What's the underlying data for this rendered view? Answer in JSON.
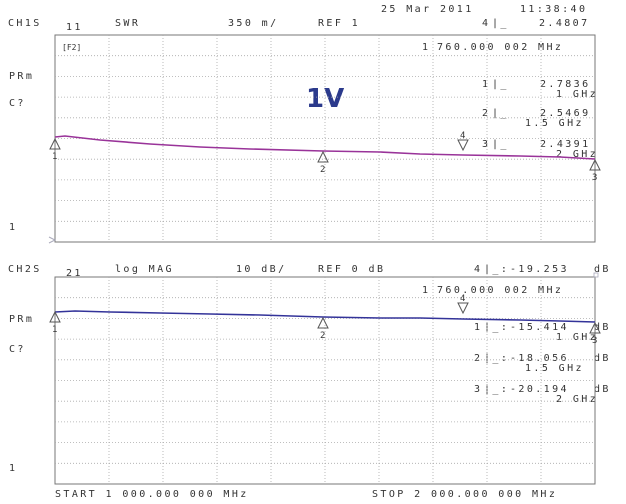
{
  "header": {
    "date": "25 Mar 2011",
    "time": "11:38:40"
  },
  "channel1": {
    "ch_label": "CH1S",
    "param": "11",
    "format": "SWR",
    "scale": "350 m/",
    "ref": "REF 1",
    "top_marker_readout": {
      "num": "4",
      "value": "2.4807"
    },
    "active_marker_freq": {
      "num": "1",
      "freq": "760.000 002 MHz"
    },
    "pr_icon": "[F2]",
    "side_labels": [
      "PRm",
      "C?"
    ],
    "ref_pos_label": "1",
    "overlay_text": "1V",
    "trace_color": "#993399",
    "markers": [
      {
        "num": "1",
        "value": "2.7836",
        "freq": "1 GHz"
      },
      {
        "num": "2",
        "value": "2.5469",
        "freq": "1.5 GHz"
      },
      {
        "num": "3",
        "value": "2.4391",
        "freq": "2 GHz"
      }
    ]
  },
  "channel2": {
    "ch_label": "CH2S",
    "param": "21",
    "format": "log MAG",
    "scale": "10 dB/",
    "ref": "REF 0 dB",
    "top_marker_readout": {
      "num": "4",
      "value": "-19.253",
      "unit": "dB"
    },
    "active_marker_freq": {
      "num": "1",
      "freq": "760.000 002 MHz"
    },
    "side_labels": [
      "PRm",
      "C?"
    ],
    "ref_pos_label": "1",
    "trace_color": "#333399",
    "markers": [
      {
        "num": "1",
        "value": "-15.414",
        "unit": "dB",
        "freq": "1 GHz"
      },
      {
        "num": "2",
        "value": "-18.056",
        "unit": "dB",
        "freq": "1.5 GHz"
      },
      {
        "num": "3",
        "value": "-20.194",
        "unit": "dB",
        "freq": "2 GHz"
      }
    ]
  },
  "footer": {
    "start": "START 1 000.000 000 MHz",
    "stop": "STOP 2 000.000 000 MHz"
  }
}
